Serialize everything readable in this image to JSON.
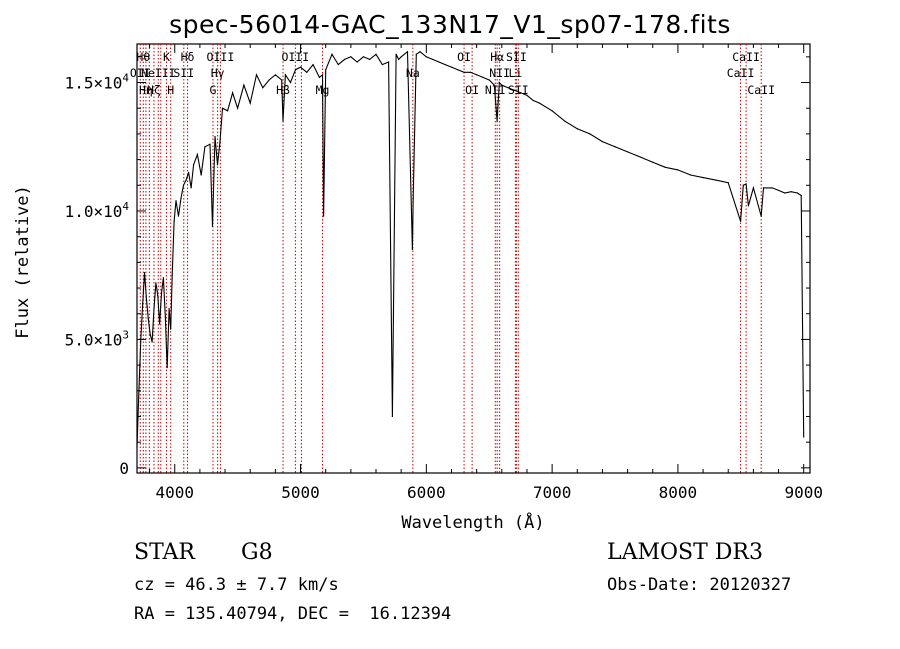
{
  "chart_data": {
    "type": "line",
    "title": "spec-56014-GAC_133N17_V1_sp07-178.fits",
    "xlabel": "Wavelength (Å)",
    "ylabel": "Flux (relative)",
    "xlim": [
      3700,
      9050
    ],
    "ylim": [
      -200,
      16500
    ],
    "x_ticks": [
      4000,
      5000,
      6000,
      7000,
      8000,
      9000
    ],
    "x_tick_labels": [
      "4000",
      "5000",
      "6000",
      "7000",
      "8000",
      "9000"
    ],
    "y_ticks": [
      0,
      5000,
      10000,
      15000
    ],
    "y_tick_labels": [
      {
        "mant": "0",
        "exp": ""
      },
      {
        "mant": "5.0×10",
        "exp": "3"
      },
      {
        "mant": "1.0×10",
        "exp": "4"
      },
      {
        "mant": "1.5×10",
        "exp": "4"
      }
    ],
    "series": [
      {
        "name": "flux",
        "x": [
          3700,
          3715,
          3730,
          3745,
          3760,
          3775,
          3790,
          3805,
          3820,
          3835,
          3850,
          3865,
          3880,
          3895,
          3910,
          3925,
          3940,
          3955,
          3968,
          3980,
          3995,
          4010,
          4030,
          4050,
          4070,
          4090,
          4110,
          4130,
          4150,
          4180,
          4210,
          4240,
          4280,
          4300,
          4320,
          4340,
          4360,
          4380,
          4420,
          4460,
          4500,
          4550,
          4600,
          4650,
          4700,
          4750,
          4800,
          4850,
          4861,
          4880,
          4920,
          4960,
          5000,
          5050,
          5100,
          5150,
          5175,
          5183,
          5200,
          5250,
          5300,
          5350,
          5400,
          5450,
          5500,
          5550,
          5600,
          5650,
          5700,
          5730,
          5760,
          5780,
          5800,
          5850,
          5889,
          5896,
          5920,
          5950,
          6000,
          6050,
          6100,
          6150,
          6200,
          6250,
          6300,
          6350,
          6400,
          6450,
          6500,
          6540,
          6563,
          6580,
          6600,
          6650,
          6700,
          6750,
          6800,
          6850,
          6900,
          7000,
          7100,
          7200,
          7300,
          7400,
          7500,
          7600,
          7700,
          7800,
          7900,
          8000,
          8100,
          8200,
          8300,
          8400,
          8498,
          8520,
          8542,
          8560,
          8600,
          8662,
          8680,
          8750,
          8800,
          8850,
          8900,
          8950,
          8980,
          9000
        ],
        "values": [
          800,
          3000,
          5000,
          6400,
          7600,
          6600,
          5800,
          5200,
          4900,
          6200,
          7200,
          6700,
          5600,
          6800,
          7400,
          5900,
          3900,
          6200,
          5400,
          7500,
          9600,
          10400,
          9800,
          10500,
          11000,
          11200,
          11500,
          10900,
          11800,
          12200,
          11400,
          12500,
          12600,
          9400,
          12900,
          11800,
          12700,
          14000,
          13900,
          14600,
          14000,
          14900,
          14200,
          15300,
          14800,
          15100,
          15300,
          15100,
          13500,
          15300,
          15000,
          15500,
          15600,
          15400,
          15700,
          15200,
          15300,
          9800,
          15500,
          16100,
          15700,
          15900,
          16000,
          15800,
          16000,
          15900,
          16100,
          15700,
          15800,
          2000,
          16100,
          15900,
          16000,
          16200,
          8500,
          10500,
          16100,
          16200,
          16000,
          15900,
          15800,
          15700,
          15600,
          15500,
          15400,
          15400,
          15300,
          15200,
          15100,
          14900,
          13500,
          15000,
          14900,
          14800,
          14700,
          14600,
          14500,
          14300,
          14200,
          13900,
          13500,
          13200,
          13000,
          12700,
          12500,
          12300,
          12100,
          11900,
          11700,
          11600,
          11400,
          11300,
          11200,
          11100,
          9600,
          11000,
          11050,
          10200,
          10900,
          9800,
          10900,
          10900,
          10800,
          10700,
          10750,
          10700,
          10600,
          1200
        ]
      }
    ],
    "line_markers": [
      {
        "x": 3726,
        "label": "OII",
        "row": 2
      },
      {
        "x": 3750,
        "label": "Hθ",
        "row": 1
      },
      {
        "x": 3771,
        "label": "Hη",
        "row": 3
      },
      {
        "x": 3798,
        "label": "",
        "row": 0
      },
      {
        "x": 3835,
        "label": "Hζ",
        "row": 3
      },
      {
        "x": 3869,
        "label": "NeIII",
        "row": 2
      },
      {
        "x": 3889,
        "label": "",
        "row": 0
      },
      {
        "x": 3934,
        "label": "K",
        "row": 1
      },
      {
        "x": 3968,
        "label": "H",
        "row": 3
      },
      {
        "x": 4072,
        "label": "SII",
        "row": 2
      },
      {
        "x": 4102,
        "label": "Hδ",
        "row": 1
      },
      {
        "x": 4304,
        "label": "G",
        "row": 3
      },
      {
        "x": 4341,
        "label": "Hγ",
        "row": 2
      },
      {
        "x": 4363,
        "label": "OIII",
        "row": 1
      },
      {
        "x": 4861,
        "label": "Hβ",
        "row": 3
      },
      {
        "x": 4959,
        "label": "OIII",
        "row": 1
      },
      {
        "x": 5007,
        "label": "",
        "row": 0
      },
      {
        "x": 5175,
        "label": "Mg",
        "row": 3
      },
      {
        "x": 5893,
        "label": "Na",
        "row": 2
      },
      {
        "x": 6300,
        "label": "OI",
        "row": 1
      },
      {
        "x": 6364,
        "label": "OI",
        "row": 3
      },
      {
        "x": 6548,
        "label": "NII",
        "row": 3
      },
      {
        "x": 6563,
        "label": "Hα",
        "row": 1
      },
      {
        "x": 6583,
        "label": "NII",
        "row": 2
      },
      {
        "x": 6708,
        "label": "Li",
        "row": 2
      },
      {
        "x": 6716,
        "label": "SII",
        "row": 1
      },
      {
        "x": 6731,
        "label": "SII",
        "row": 3
      },
      {
        "x": 8498,
        "label": "CaII",
        "row": 2
      },
      {
        "x": 8542,
        "label": "CaII",
        "row": 1
      },
      {
        "x": 8662,
        "label": "CaII",
        "row": 3
      }
    ]
  },
  "info": {
    "object_type": "STAR",
    "subclass": "G8",
    "survey": "LAMOST DR3",
    "redshift": "cz = 46.3 ± 7.7 km/s",
    "obs_date": "Obs-Date: 20120327",
    "coords": "RA = 135.40794, DEC =  16.12394"
  },
  "colors": {
    "spectrum": "#000000",
    "marker": "#c00000",
    "axis": "#000000",
    "background": "#ffffff"
  }
}
